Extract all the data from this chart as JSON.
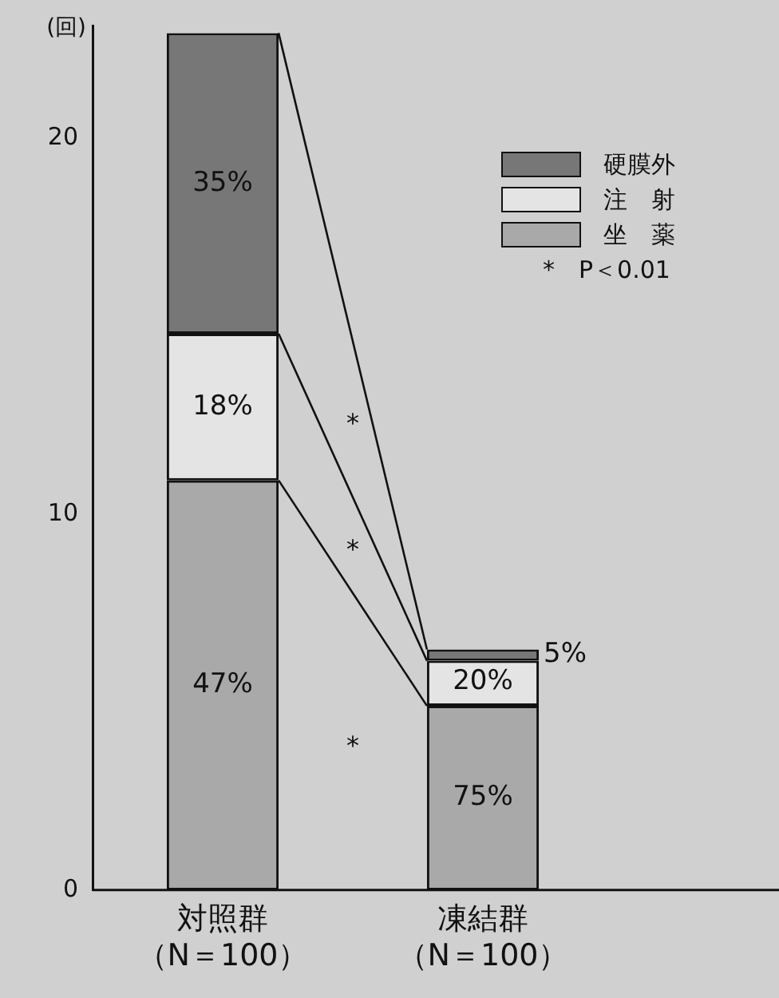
{
  "chart_data": {
    "type": "bar",
    "stacked": true,
    "ylabel": "(回)",
    "categories": [
      "対照群（N＝100）",
      "凍結群（N＝100）"
    ],
    "series": [
      {
        "name": "坐　薬",
        "color": "#a9a9a9",
        "values": [
          10.9,
          4.9
        ]
      },
      {
        "name": "注　射",
        "color": "#e4e4e4",
        "values": [
          3.9,
          1.2
        ]
      },
      {
        "name": "硬膜外",
        "color": "#777777",
        "values": [
          8.0,
          0.3
        ]
      }
    ],
    "ylim": [
      0,
      23
    ],
    "yticks": [
      0,
      10,
      20
    ],
    "grid": false,
    "legend": "top right",
    "annotations": [
      "*",
      "*",
      "*",
      "*　P＜0.01",
      "47%",
      "18%",
      "35%",
      "75%",
      {
        "text": "20%",
        "x": "凍結群（N＝100）",
        "y": 6.1
      },
      "5%"
    ]
  }
}
